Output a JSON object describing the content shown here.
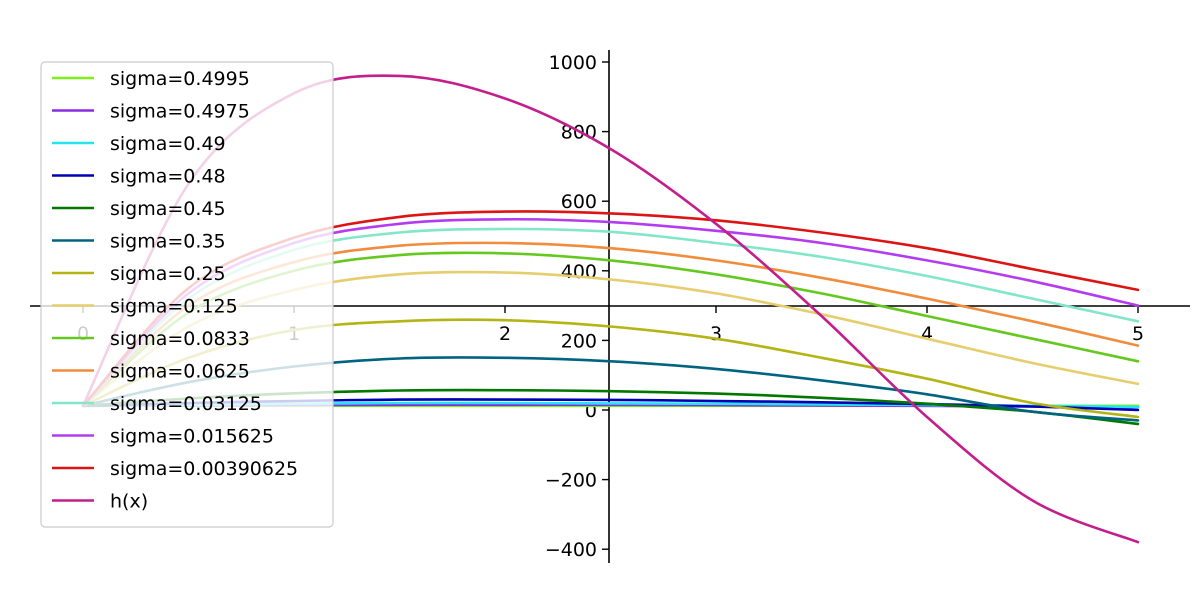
{
  "chart_data": {
    "type": "line",
    "title": "",
    "xlabel": "",
    "ylabel": "",
    "xlim": [
      -0.25,
      5.25
    ],
    "ylim": [
      -440,
      1040
    ],
    "x_ticks": [
      "0",
      "1",
      "2",
      "3",
      "4",
      "5"
    ],
    "x_tick_values": [
      0,
      1,
      2,
      3,
      4,
      5
    ],
    "y_ticks": [
      "−400",
      "−200",
      "0",
      "200",
      "400",
      "600",
      "800",
      "1000"
    ],
    "y_tick_values": [
      -400,
      -200,
      0,
      200,
      400,
      600,
      800,
      1000
    ],
    "grid": false,
    "legend_position": "upper-left",
    "x": [
      0,
      0.5,
      1,
      1.5,
      2,
      2.5,
      3,
      3.5,
      4,
      4.5,
      5
    ],
    "series": [
      {
        "name": "sigma=0.4995",
        "color": "#7ff01e",
        "values": [
          12,
          12,
          12,
          12,
          12,
          12,
          12,
          12,
          12,
          12,
          12
        ]
      },
      {
        "name": "sigma=0.4975",
        "color": "#8a2be2",
        "values": [
          12,
          13,
          14,
          15,
          15,
          15,
          14,
          13,
          12,
          10,
          8
        ]
      },
      {
        "name": "sigma=0.49",
        "color": "#25e4f0",
        "values": [
          12,
          15,
          18,
          20,
          20,
          19,
          18,
          16,
          14,
          12,
          9
        ]
      },
      {
        "name": "sigma=0.48",
        "color": "#0000b4",
        "values": [
          12,
          20,
          26,
          30,
          30,
          29,
          26,
          22,
          17,
          10,
          0
        ]
      },
      {
        "name": "sigma=0.45",
        "color": "#007800",
        "values": [
          12,
          33,
          48,
          56,
          57,
          54,
          47,
          35,
          18,
          -5,
          -40
        ]
      },
      {
        "name": "sigma=0.35",
        "color": "#006480",
        "values": [
          12,
          80,
          125,
          148,
          150,
          140,
          118,
          85,
          45,
          -5,
          -30
        ]
      },
      {
        "name": "sigma=0.25",
        "color": "#b4b414",
        "values": [
          12,
          150,
          230,
          255,
          258,
          240,
          205,
          150,
          90,
          20,
          -20
        ]
      },
      {
        "name": "sigma=0.125",
        "color": "#e6cd6e",
        "values": [
          12,
          240,
          345,
          390,
          395,
          375,
          335,
          275,
          205,
          135,
          75
        ]
      },
      {
        "name": "sigma=0.0833",
        "color": "#64c81e",
        "values": [
          12,
          280,
          400,
          445,
          450,
          430,
          390,
          335,
          270,
          205,
          140
        ]
      },
      {
        "name": "sigma=0.0625",
        "color": "#f08c3c",
        "values": [
          12,
          300,
          425,
          472,
          480,
          465,
          430,
          380,
          320,
          255,
          185
        ]
      },
      {
        "name": "sigma=0.03125",
        "color": "#82e6c8",
        "values": [
          12,
          320,
          460,
          510,
          520,
          512,
          480,
          440,
          385,
          320,
          255
        ]
      },
      {
        "name": "sigma=0.015625",
        "color": "#b43cf0",
        "values": [
          12,
          335,
          480,
          535,
          548,
          540,
          515,
          480,
          430,
          370,
          300
        ]
      },
      {
        "name": "sigma=0.00390625",
        "color": "#dc1414",
        "values": [
          12,
          350,
          495,
          555,
          570,
          565,
          545,
          510,
          465,
          405,
          345
        ]
      },
      {
        "name": "h(x)",
        "color": "#c31e8c",
        "values": [
          12,
          650,
          910,
          960,
          895,
          750,
          535,
          270,
          -20,
          -260,
          -380
        ]
      }
    ]
  }
}
